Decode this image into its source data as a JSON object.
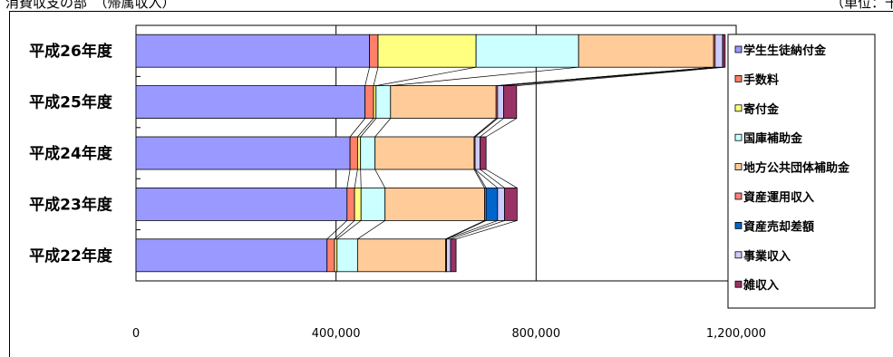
{
  "header": {
    "left_title": "消費収支の部　（帰属収入）",
    "right_unit": "（単位：千"
  },
  "chart_data": {
    "type": "bar",
    "orientation": "horizontal",
    "stacked": true,
    "categories": [
      "平成26年度",
      "平成25年度",
      "平成24年度",
      "平成23年度",
      "平成22年度"
    ],
    "series": [
      {
        "name": "学生生徒納付金",
        "color": "#9999ff",
        "values": [
          467000,
          458000,
          428000,
          422000,
          382000
        ]
      },
      {
        "name": "手数料",
        "color": "#ff7f6a",
        "values": [
          17000,
          17000,
          15000,
          15000,
          15000
        ]
      },
      {
        "name": "寄付金",
        "color": "#ffff80",
        "values": [
          196000,
          5000,
          6000,
          13000,
          5000
        ]
      },
      {
        "name": "国庫補助金",
        "color": "#ccffff",
        "values": [
          205000,
          29000,
          29000,
          48000,
          41000
        ]
      },
      {
        "name": "地方公共団体補助金",
        "color": "#ffcc99",
        "values": [
          270000,
          211000,
          198000,
          199000,
          176000
        ]
      },
      {
        "name": "資産運用収入",
        "color": "#ff8080",
        "values": [
          3000,
          3000,
          2000,
          3000,
          2000
        ]
      },
      {
        "name": "資産売却差額",
        "color": "#0066cc",
        "values": [
          0,
          0,
          0,
          23000,
          0
        ]
      },
      {
        "name": "事業収入",
        "color": "#ccccff",
        "values": [
          15000,
          12000,
          10000,
          14000,
          8000
        ]
      },
      {
        "name": "雑収入",
        "color": "#993366",
        "values": [
          5000,
          26000,
          12000,
          25000,
          11000
        ]
      }
    ],
    "xlim": [
      0,
      1200000
    ],
    "xticks": [
      "0",
      "400,000",
      "800,000",
      "1,200,000"
    ],
    "grid": true,
    "legend": "right",
    "connector_lines": true
  }
}
